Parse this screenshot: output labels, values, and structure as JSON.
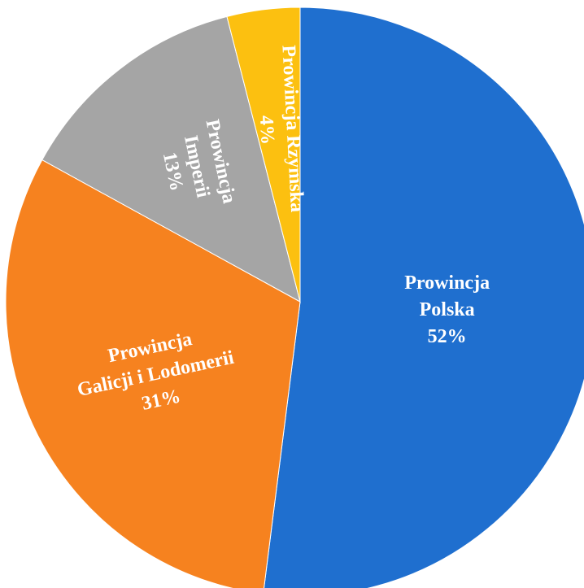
{
  "chart_data": {
    "type": "pie",
    "title": "",
    "slices": [
      {
        "label_lines": [
          "Prowincja",
          "Polska"
        ],
        "value_label": "52%",
        "value": 52,
        "color": "#1f6fcf"
      },
      {
        "label_lines": [
          "Prowincja",
          "Galicji i Lodomerii"
        ],
        "value_label": "31%",
        "value": 31,
        "color": "#f6821f"
      },
      {
        "label_lines": [
          "Prowincja",
          "Imperii"
        ],
        "value_label": "13%",
        "value": 13,
        "color": "#a5a5a5"
      },
      {
        "label_lines": [
          "Prowincja Rzymska"
        ],
        "value_label": "4%",
        "value": 4,
        "color": "#fcc010"
      }
    ],
    "start_angle": "12 o'clock",
    "direction": "clockwise",
    "legend": "none"
  }
}
